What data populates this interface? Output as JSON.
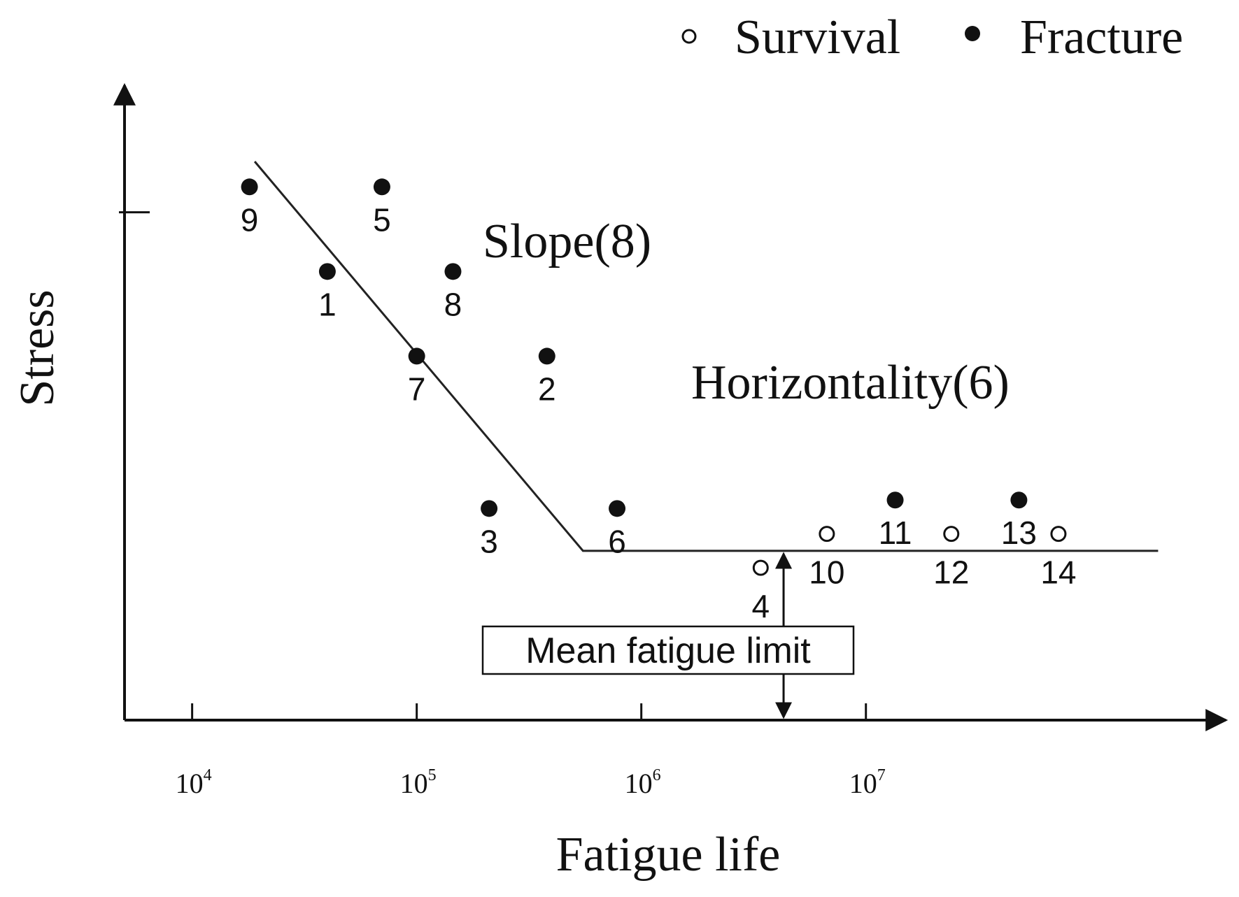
{
  "chart_data": {
    "type": "scatter",
    "title": "",
    "xlabel": "Fatigue life",
    "ylabel": "Stress",
    "x_scale": "log",
    "xlim": [
      5000,
      400000000
    ],
    "ylim": [
      0,
      7.5
    ],
    "x_ticks": [
      {
        "base": "10",
        "exp": "4",
        "value": 10000
      },
      {
        "base": "10",
        "exp": "5",
        "value": 100000
      },
      {
        "base": "10",
        "exp": "6",
        "value": 1000000
      },
      {
        "base": "10",
        "exp": "7",
        "value": 10000000
      }
    ],
    "y_ticks": [
      6
    ],
    "grid": false,
    "legend": {
      "position": "top-right",
      "entries": [
        {
          "label": "Survival",
          "marker": "open-circle"
        },
        {
          "label": "Fracture",
          "marker": "filled-circle"
        }
      ]
    },
    "series": [
      {
        "name": "Fracture",
        "marker": "filled-circle",
        "points": [
          {
            "label": "9",
            "x": 18000,
            "y": 6.3
          },
          {
            "label": "5",
            "x": 70000,
            "y": 6.3
          },
          {
            "label": "1",
            "x": 40000,
            "y": 5.3
          },
          {
            "label": "8",
            "x": 145000,
            "y": 5.3
          },
          {
            "label": "7",
            "x": 100000,
            "y": 4.3
          },
          {
            "label": "2",
            "x": 380000,
            "y": 4.3
          },
          {
            "label": "3",
            "x": 210000,
            "y": 2.5
          },
          {
            "label": "6",
            "x": 780000,
            "y": 2.5
          },
          {
            "label": "11",
            "x": 13500000,
            "y": 2.6
          },
          {
            "label": "13",
            "x": 48000000,
            "y": 2.6
          }
        ]
      },
      {
        "name": "Survival",
        "marker": "open-circle",
        "points": [
          {
            "label": "4",
            "x": 3400000,
            "y": 1.8
          },
          {
            "label": "10",
            "x": 6700000,
            "y": 2.2
          },
          {
            "label": "12",
            "x": 24000000,
            "y": 2.2
          },
          {
            "label": "14",
            "x": 72000000,
            "y": 2.2
          }
        ]
      }
    ],
    "sn_curve": [
      {
        "x": 19000,
        "y": 6.6
      },
      {
        "x": 550000,
        "y": 2.0
      },
      {
        "x": 200000000,
        "y": 2.0
      }
    ],
    "annotations": [
      {
        "text": "Slope(8)"
      },
      {
        "text": "Horizontality(6)"
      },
      {
        "text": "Mean fatigue limit",
        "boxed": true,
        "x": 4300000,
        "arrow_from_y": 0,
        "arrow_to_y": 2.0
      }
    ]
  }
}
